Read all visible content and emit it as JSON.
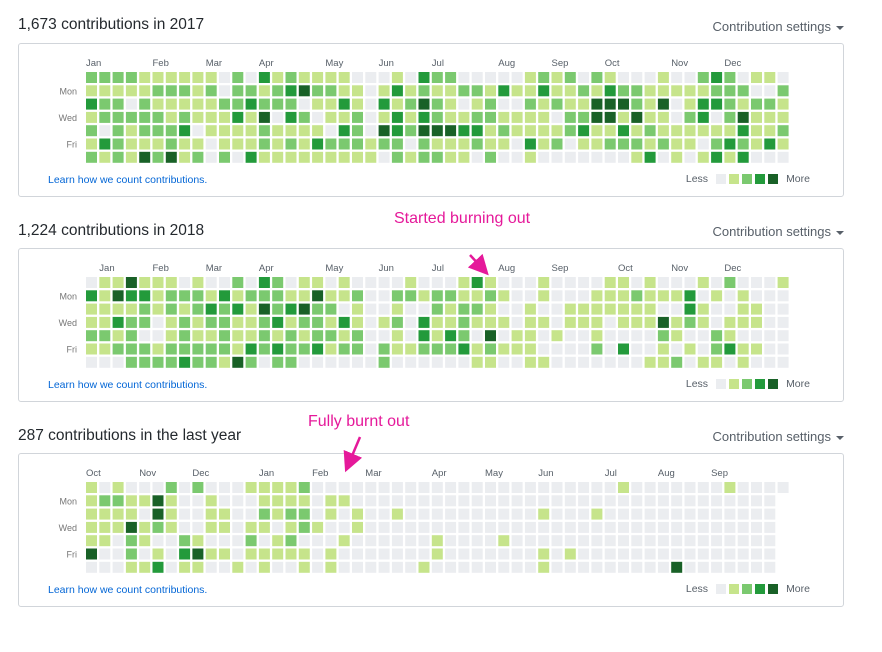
{
  "colors": {
    "levels": [
      "#ebedf0",
      "#c6e48b",
      "#7bc96f",
      "#239a3b",
      "#196127"
    ],
    "annotation": "#e5199a",
    "link": "#0366d6"
  },
  "day_labels": [
    "Mon",
    "Wed",
    "Fri"
  ],
  "panels": [
    {
      "title": "1,673 contributions in 2017",
      "settings_label": "Contribution settings",
      "learn_link": "Learn how we count contributions.",
      "legend_less": "Less",
      "legend_more": "More",
      "months": [
        "Jan",
        "Feb",
        "Mar",
        "Apr",
        "May",
        "Jun",
        "Jul",
        "Aug",
        "Sep",
        "Oct",
        "Nov",
        "Dec"
      ],
      "grid": [
        "22221111110203121111000103220000012120210001002320110",
        "11111222120221234221101312112213113112132211111222002",
        "32202111112232220113103124210120021211444214013321221",
        "12222212111314032011201313211221111022441411023024111",
        "20212223011112111103204324443312111123113121111113112",
        "13211121101112121322212202111211031201122212110232131",
        "21214241202031111111110212211020010000000130101313000"
      ]
    },
    {
      "title": "1,224 contributions in 2018",
      "settings_label": "Contribution settings",
      "learn_link": "Learn how we count contributions.",
      "legend_less": "Less",
      "legend_more": "More",
      "months": [
        "Jan",
        "Feb",
        "Mar",
        "Apr",
        "May",
        "Jun",
        "Jul",
        "Aug",
        "Sep",
        "Oct",
        "Nov",
        "Dec"
      ],
      "annotation": "Started burning out",
      "grid": [
        "01141110100203201101000010001310001000011010001020001",
        "31433122213122211411200221221121001000111211130101000",
        "11112121232314234220100100212210010011111110031001100",
        "11322012122112312213101203112111011011101114121011100",
        "22120012112112121221200103132040110100100002100210000",
        "11222122222132322312202112223121110000203001010231100",
        "00022223221420220000002000000110011000000011201101000"
      ]
    },
    {
      "title": "287 contributions in the last year",
      "settings_label": "Contribution settings",
      "learn_link": "Learn how we count contributions.",
      "legend_less": "Less",
      "legend_more": "More",
      "months": [
        "Oct",
        "Nov",
        "Dec",
        "Jan",
        "Feb",
        "Mar",
        "Apr",
        "May",
        "Jun",
        "Jul",
        "Aug",
        "Sep"
      ],
      "annotation": "Fully burnt out",
      "grid": [
        "10100020200011112000000000000000000000001000000010000",
        "1221141001000111101100000000000000000000000000000000.",
        "1111041001100212201010010000000000100010000000000000.",
        "1114121001101101210010000000000000000000000000000000.",
        "1102100210002012000100000010000100000000000000000000.",
        "4002010341101111101000000010000000101000000000000000.",
        "0001130110010100101000000100000000100000000040000000."
      ]
    }
  ]
}
